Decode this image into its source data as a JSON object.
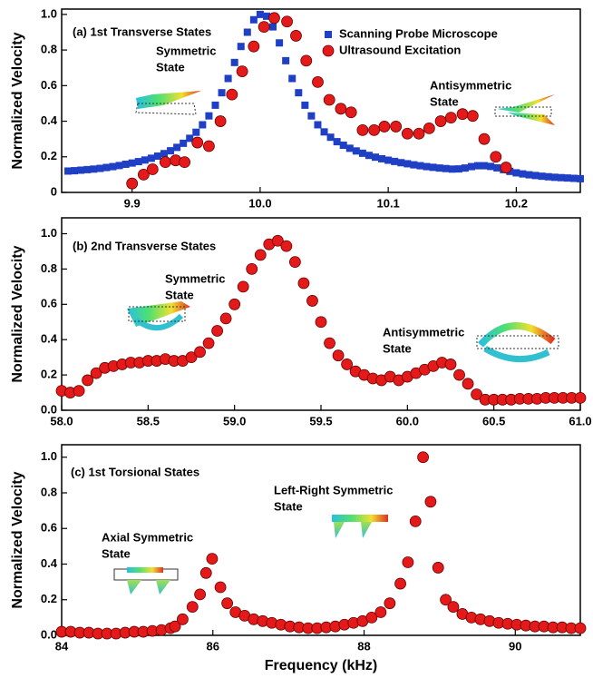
{
  "chart_data": [
    {
      "type": "scatter",
      "annotations": [
        "(a) 1st Transverse States",
        [
          "Symmetric",
          "State"
        ],
        [
          "Antisymmetric",
          "State"
        ]
      ],
      "ylabel": "Normalized Velocity",
      "xlim": [
        9.845,
        10.25
      ],
      "ylim": [
        0,
        1.03
      ],
      "xticks": [
        9.9,
        {
          "value": 10,
          "label": "10.0"
        },
        10.1,
        10.2
      ],
      "yticks": [
        0,
        0.2,
        0.4,
        0.6,
        0.8,
        {
          "value": 1,
          "label": "1.0"
        }
      ],
      "legend": "top-right",
      "series": [
        {
          "name": "Scanning Probe Microscope",
          "color": "#1f3fc4",
          "marker": "square",
          "x": [
            9.85,
            9.855,
            9.86,
            9.865,
            9.87,
            9.875,
            9.88,
            9.885,
            9.89,
            9.895,
            9.9,
            9.905,
            9.91,
            9.915,
            9.92,
            9.925,
            9.93,
            9.935,
            9.94,
            9.945,
            9.95,
            9.955,
            9.96,
            9.965,
            9.97,
            9.975,
            9.98,
            9.985,
            9.99,
            9.995,
            10,
            10.005,
            10.01,
            10.015,
            10.02,
            10.025,
            10.03,
            10.035,
            10.04,
            10.045,
            10.05,
            10.055,
            10.06,
            10.065,
            10.07,
            10.075,
            10.08,
            10.085,
            10.09,
            10.095,
            10.1,
            10.105,
            10.11,
            10.115,
            10.12,
            10.125,
            10.13,
            10.135,
            10.14,
            10.145,
            10.15,
            10.155,
            10.16,
            10.165,
            10.17,
            10.175,
            10.18,
            10.185,
            10.19,
            10.195,
            10.2,
            10.205,
            10.21,
            10.215,
            10.22,
            10.225,
            10.23,
            10.235,
            10.24,
            10.245,
            10.25
          ],
          "values": [
            0.12,
            0.122,
            0.125,
            0.128,
            0.131,
            0.135,
            0.14,
            0.145,
            0.151,
            0.158,
            0.165,
            0.173,
            0.182,
            0.192,
            0.204,
            0.218,
            0.234,
            0.253,
            0.276,
            0.304,
            0.338,
            0.38,
            0.43,
            0.49,
            0.56,
            0.64,
            0.73,
            0.82,
            0.9,
            0.97,
            1.0,
            0.99,
            0.93,
            0.84,
            0.74,
            0.64,
            0.56,
            0.49,
            0.43,
            0.38,
            0.34,
            0.31,
            0.285,
            0.265,
            0.248,
            0.233,
            0.22,
            0.208,
            0.198,
            0.189,
            0.181,
            0.174,
            0.167,
            0.161,
            0.155,
            0.15,
            0.145,
            0.141,
            0.137,
            0.134,
            0.131,
            0.132,
            0.137,
            0.145,
            0.15,
            0.15,
            0.146,
            0.138,
            0.128,
            0.118,
            0.11,
            0.104,
            0.099,
            0.095,
            0.091,
            0.088,
            0.085,
            0.083,
            0.081,
            0.079,
            0.077
          ]
        },
        {
          "name": "Ultrasound Excitation",
          "color": "#e41a1a",
          "marker": "circle",
          "x": [
            9.9,
            9.909,
            9.916,
            9.926,
            9.934,
            9.941,
            9.951,
            9.96,
            9.969,
            9.978,
            9.986,
            9.995,
            10.003,
            10.011,
            10.021,
            10.028,
            10.036,
            10.045,
            10.054,
            10.063,
            10.071,
            10.08,
            10.089,
            10.097,
            10.106,
            10.115,
            10.124,
            10.132,
            10.141,
            10.149,
            10.158,
            10.166,
            10.175,
            10.184,
            10.192
          ],
          "values": [
            0.05,
            0.1,
            0.13,
            0.17,
            0.18,
            0.17,
            0.28,
            0.26,
            0.4,
            0.55,
            0.68,
            0.82,
            0.93,
            0.98,
            0.96,
            0.88,
            0.74,
            0.62,
            0.52,
            0.47,
            0.45,
            0.35,
            0.35,
            0.37,
            0.37,
            0.33,
            0.33,
            0.36,
            0.4,
            0.42,
            0.44,
            0.43,
            0.3,
            0.2,
            0.14
          ]
        }
      ]
    },
    {
      "type": "scatter",
      "annotations": [
        "(b) 2nd Transverse States",
        [
          "Symmetric",
          "State"
        ],
        [
          "Antisymmetric",
          "State"
        ]
      ],
      "ylabel": "Normalized Velocity",
      "xlim": [
        58,
        61
      ],
      "ylim": [
        0,
        1.09
      ],
      "xticks": [
        {
          "value": 58,
          "label": "58.0"
        },
        58.5,
        {
          "value": 59,
          "label": "59.0"
        },
        59.5,
        {
          "value": 60,
          "label": "60.0"
        },
        60.5,
        {
          "value": 61,
          "label": "61.0"
        }
      ],
      "yticks": [
        {
          "value": 0,
          "label": "0.0"
        },
        0.2,
        0.4,
        0.6,
        0.8,
        {
          "value": 1,
          "label": "1.0"
        }
      ],
      "series": [
        {
          "color": "#e41a1a",
          "marker": "circle",
          "x": [
            58,
            58.05,
            58.1,
            58.15,
            58.2,
            58.25,
            58.3,
            58.35,
            58.4,
            58.45,
            58.5,
            58.55,
            58.6,
            58.65,
            58.7,
            58.75,
            58.8,
            58.85,
            58.9,
            58.95,
            59,
            59.05,
            59.1,
            59.15,
            59.2,
            59.25,
            59.3,
            59.35,
            59.4,
            59.45,
            59.5,
            59.55,
            59.6,
            59.65,
            59.7,
            59.75,
            59.8,
            59.85,
            59.9,
            59.95,
            60,
            60.05,
            60.1,
            60.15,
            60.2,
            60.25,
            60.3,
            60.35,
            60.4,
            60.45,
            60.5,
            60.55,
            60.6,
            60.65,
            60.7,
            60.75,
            60.8,
            60.85,
            60.9,
            60.95,
            61
          ],
          "values": [
            0.11,
            0.1,
            0.11,
            0.17,
            0.21,
            0.24,
            0.25,
            0.26,
            0.27,
            0.27,
            0.28,
            0.28,
            0.29,
            0.28,
            0.28,
            0.3,
            0.33,
            0.38,
            0.45,
            0.52,
            0.6,
            0.7,
            0.8,
            0.88,
            0.94,
            0.96,
            0.93,
            0.84,
            0.72,
            0.62,
            0.5,
            0.38,
            0.31,
            0.26,
            0.22,
            0.2,
            0.18,
            0.17,
            0.19,
            0.17,
            0.19,
            0.21,
            0.23,
            0.25,
            0.27,
            0.26,
            0.2,
            0.15,
            0.09,
            0.06,
            0.06,
            0.06,
            0.06,
            0.065,
            0.065,
            0.065,
            0.07,
            0.07,
            0.07,
            0.07,
            0.07
          ]
        }
      ]
    },
    {
      "type": "scatter",
      "annotations": [
        "(c) 1st Torsional States",
        [
          "Left-Right Symmetric",
          "State"
        ],
        [
          "Axial Symmetric",
          "State"
        ]
      ],
      "ylabel": "Normalized Velocity",
      "xlabel": "Frequency (kHz)",
      "xlim": [
        84,
        90.86
      ],
      "ylim": [
        0,
        1.07
      ],
      "xticks": [
        84,
        86,
        88,
        90
      ],
      "yticks": [
        {
          "value": 0,
          "label": "0.0"
        },
        0.2,
        0.4,
        0.6,
        0.8,
        {
          "value": 1,
          "label": "1.0"
        }
      ],
      "series": [
        {
          "color": "#e41a1a",
          "marker": "circle",
          "x": [
            84,
            84.12,
            84.24,
            84.36,
            84.48,
            84.6,
            84.72,
            84.84,
            84.96,
            85.08,
            85.2,
            85.32,
            85.44,
            85.5,
            85.6,
            85.73,
            85.83,
            85.91,
            85.99,
            86.1,
            86.19,
            86.3,
            86.42,
            86.54,
            86.66,
            86.78,
            86.9,
            87.02,
            87.14,
            87.26,
            87.38,
            87.5,
            87.62,
            87.74,
            87.86,
            87.98,
            88.1,
            88.22,
            88.34,
            88.48,
            88.58,
            88.68,
            88.78,
            88.88,
            88.98,
            89.08,
            89.18,
            89.3,
            89.42,
            89.54,
            89.66,
            89.78,
            89.9,
            90.02,
            90.14,
            90.26,
            90.38,
            90.5,
            90.62,
            90.74,
            90.86
          ],
          "values": [
            0.02,
            0.02,
            0.015,
            0.015,
            0.01,
            0.01,
            0.01,
            0.015,
            0.02,
            0.02,
            0.025,
            0.03,
            0.04,
            0.05,
            0.09,
            0.16,
            0.23,
            0.35,
            0.43,
            0.27,
            0.18,
            0.13,
            0.11,
            0.09,
            0.08,
            0.07,
            0.06,
            0.05,
            0.045,
            0.04,
            0.04,
            0.045,
            0.05,
            0.06,
            0.07,
            0.08,
            0.1,
            0.13,
            0.18,
            0.29,
            0.41,
            0.64,
            1.0,
            0.75,
            0.38,
            0.2,
            0.16,
            0.12,
            0.1,
            0.09,
            0.08,
            0.07,
            0.065,
            0.06,
            0.055,
            0.05,
            0.05,
            0.045,
            0.045,
            0.04,
            0.04
          ]
        }
      ]
    }
  ]
}
